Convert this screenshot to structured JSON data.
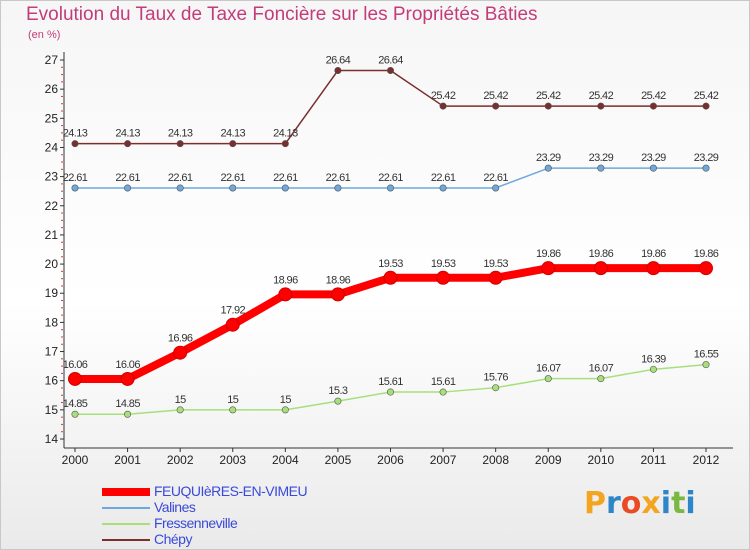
{
  "title": "Evolution du Taux de Taxe Foncière sur les Propriétés Bâties",
  "unit": "(en %)",
  "logo": {
    "letters": [
      "P",
      "r",
      "o",
      "x",
      "i",
      "t",
      "i"
    ],
    "colors": [
      "#f4a51f",
      "#2e86c9",
      "#e94b25",
      "#f4a51f",
      "#2e86c9",
      "#7ab842",
      "#2e86c9"
    ]
  },
  "chart_data": {
    "type": "line",
    "title": "Evolution du Taux de Taxe Foncière sur les Propriétés Bâties",
    "ylabel": "(en %)",
    "xlabel": "",
    "ylim": [
      14,
      27
    ],
    "yticks": [
      14,
      15,
      16,
      17,
      18,
      19,
      20,
      21,
      22,
      23,
      24,
      25,
      26,
      27
    ],
    "grid": false,
    "legend_position": "bottom-left",
    "categories": [
      "2000",
      "2001",
      "2002",
      "2003",
      "2004",
      "2005",
      "2006",
      "2007",
      "2008",
      "2009",
      "2010",
      "2011",
      "2012"
    ],
    "series": [
      {
        "name": "FEUQUIèRES-EN-VIMEU",
        "color": "#ff0000",
        "emphasis": true,
        "values": [
          16.06,
          16.06,
          16.96,
          17.92,
          18.96,
          18.96,
          19.53,
          19.53,
          19.53,
          19.86,
          19.86,
          19.86,
          19.86
        ],
        "labels": [
          "16.06",
          "16.06",
          "16.96",
          "17.92",
          "18.96",
          "18.96",
          "19.53",
          "19.53",
          "19.53",
          "19.86",
          "19.86",
          "19.86",
          "19.86"
        ]
      },
      {
        "name": "Valines",
        "color": "#6fa8dc",
        "emphasis": false,
        "values": [
          22.61,
          22.61,
          22.61,
          22.61,
          22.61,
          22.61,
          22.61,
          22.61,
          22.61,
          23.29,
          23.29,
          23.29,
          23.29
        ],
        "labels": [
          "22.61",
          "22.61",
          "22.61",
          "22.61",
          "22.61",
          "22.61",
          "22.61",
          "22.61",
          "22.61",
          "23.29",
          "23.29",
          "23.29",
          "23.29"
        ]
      },
      {
        "name": "Fressenneville",
        "color": "#a7e07a",
        "emphasis": false,
        "values": [
          14.85,
          14.85,
          15,
          15,
          15,
          15.3,
          15.61,
          15.61,
          15.76,
          16.07,
          16.07,
          16.39,
          16.55
        ],
        "labels": [
          "14.85",
          "14.85",
          "15",
          "15",
          "15",
          "15.3",
          "15.61",
          "15.61",
          "15.76",
          "16.07",
          "16.07",
          "16.39",
          "16.55"
        ]
      },
      {
        "name": "Chépy",
        "color": "#7a2e2e",
        "emphasis": false,
        "values": [
          24.13,
          24.13,
          24.13,
          24.13,
          24.13,
          26.64,
          26.64,
          25.42,
          25.42,
          25.42,
          25.42,
          25.42,
          25.42
        ],
        "labels": [
          "24.13",
          "24.13",
          "24.13",
          "24.13",
          "24.13",
          "26.64",
          "26.64",
          "25.42",
          "25.42",
          "25.42",
          "25.42",
          "25.42",
          "25.42"
        ]
      }
    ]
  }
}
